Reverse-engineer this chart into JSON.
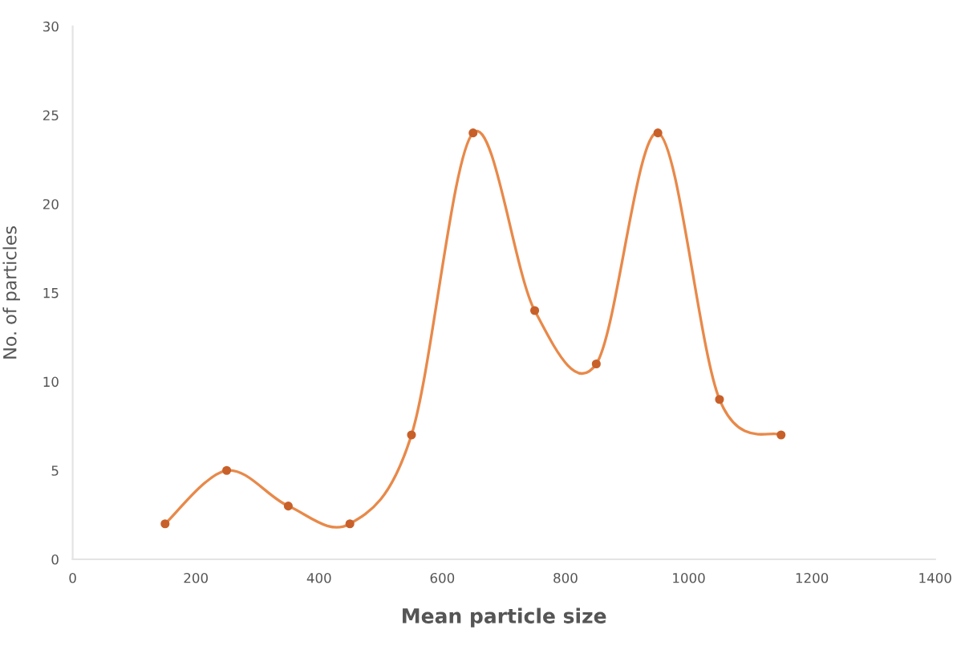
{
  "chart_data": {
    "type": "line",
    "xlabel": "Mean particle size",
    "ylabel": "No. of particles",
    "x": [
      150,
      250,
      350,
      450,
      550,
      650,
      750,
      850,
      950,
      1050,
      1150
    ],
    "series": [
      {
        "color": "#e8894a",
        "values": [
          2,
          5,
          3,
          2,
          7,
          24,
          14,
          11,
          24,
          9,
          7
        ]
      }
    ],
    "xlim": [
      0,
      1400
    ],
    "xticks": [
      0,
      200,
      400,
      600,
      800,
      1000,
      1200,
      1400
    ],
    "ylim": [
      0,
      30
    ],
    "yticks": [
      0,
      5,
      10,
      15,
      20,
      25,
      30
    ],
    "marker": "circle",
    "line_style": "solid",
    "grid": false,
    "legend": false
  }
}
